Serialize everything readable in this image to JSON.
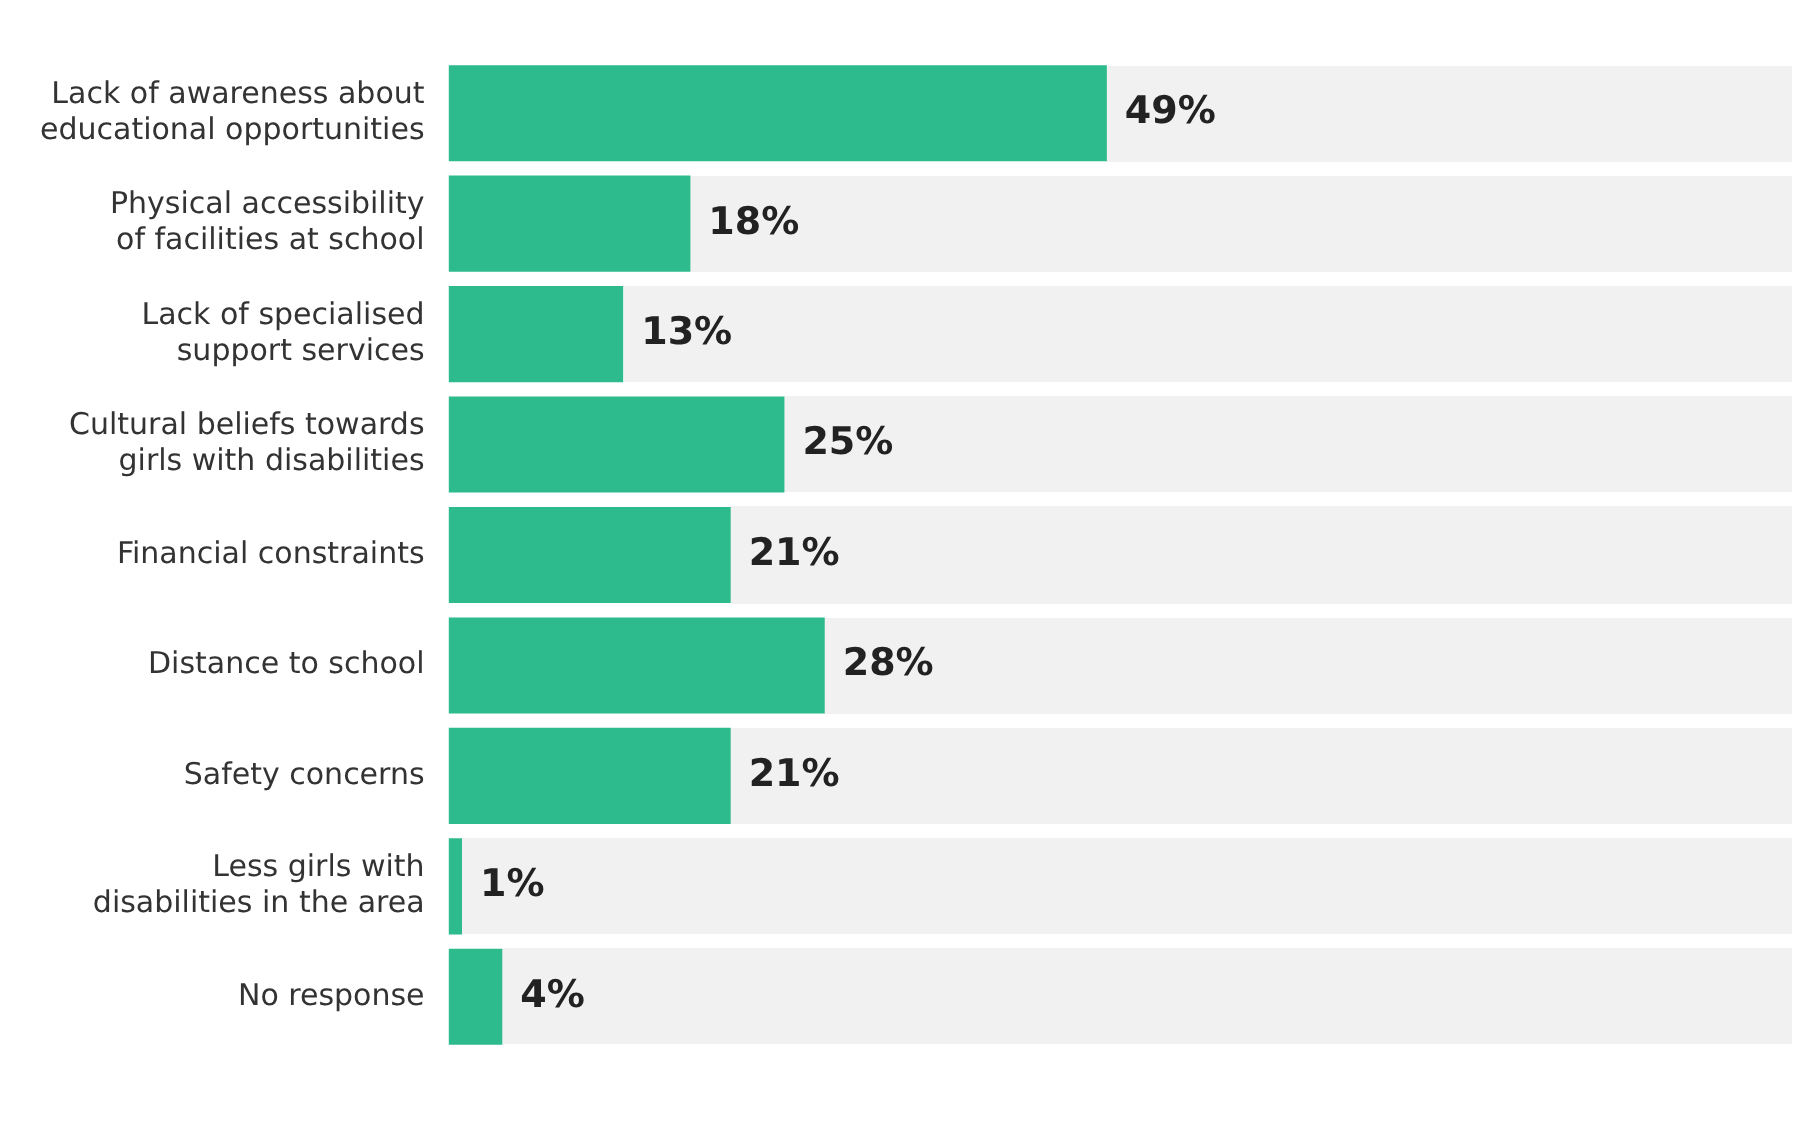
{
  "chart_data": {
    "type": "bar",
    "orientation": "horizontal",
    "categories": [
      "Lack of awareness about educational opportunities",
      "Physical accessibility of facilities at school",
      "Lack of specialised support services",
      "Cultural beliefs towards girls with disabilities",
      "Financial constraints",
      "Distance to school",
      "Safety concerns",
      "Less girls with disabilities in the area",
      "No response"
    ],
    "values": [
      49,
      18,
      13,
      25,
      21,
      28,
      21,
      1,
      4
    ],
    "value_labels": [
      "49%",
      "18%",
      "13%",
      "25%",
      "21%",
      "28%",
      "21%",
      "1%",
      "4%"
    ],
    "color": "#2dba8c",
    "xlim": [
      0,
      100
    ],
    "tick_labels": "y",
    "grid": false,
    "legend": false
  }
}
